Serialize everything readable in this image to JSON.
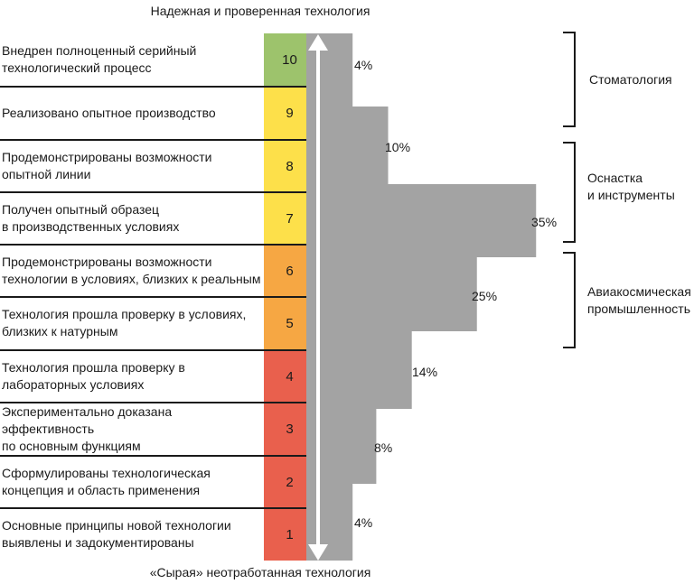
{
  "top_label": "Надежная и проверенная технология",
  "bottom_label": "«Сырая» неотработанная технология",
  "levels": [
    {
      "num": "10",
      "text": "Внедрен полноценный серийный\nтехнологический процесс",
      "color": "#9dc36c"
    },
    {
      "num": "9",
      "text": "Реализовано опытное производство",
      "color": "#fde04a"
    },
    {
      "num": "8",
      "text": "Продемонстрированы возможности\nопытной линии",
      "color": "#fde04a"
    },
    {
      "num": "7",
      "text": "Получен опытный образец\nв производственных условиях",
      "color": "#fde04a"
    },
    {
      "num": "6",
      "text": "Продемонстрированы возможности\nтехнологии в условиях, близких к реальным",
      "color": "#f6a743"
    },
    {
      "num": "5",
      "text": "Технология прошла проверку в условиях,\nблизких к натурным",
      "color": "#f6a743"
    },
    {
      "num": "4",
      "text": "Технология прошла проверку в\n лабораторных условиях",
      "color": "#e9604d"
    },
    {
      "num": "3",
      "text": "Экспериментально доказана эффективность\nпо основным функциям",
      "color": "#e9604d"
    },
    {
      "num": "2",
      "text": "Сформулированы технологическая\nконцепция и область применения",
      "color": "#e9604d"
    },
    {
      "num": "1",
      "text": "Основные принципы новой технологии\nвыявлены и задокументированы",
      "color": "#e9604d"
    }
  ],
  "distribution": [
    {
      "levels": "10",
      "value": 4,
      "label": "4%"
    },
    {
      "levels": "8-9",
      "value": 10,
      "label": "10%"
    },
    {
      "levels": "7",
      "value": 35,
      "label": "35%"
    },
    {
      "levels": "5-6",
      "value": 25,
      "label": "25%"
    },
    {
      "levels": "4",
      "value": 14,
      "label": "14%"
    },
    {
      "levels": "2-3",
      "value": 8,
      "label": "8%"
    },
    {
      "levels": "1",
      "value": 4,
      "label": "4%"
    }
  ],
  "industries": [
    {
      "text": "Стоматология",
      "span": "9-10"
    },
    {
      "text": "Оснастка\nи инструменты",
      "span": "7-8"
    },
    {
      "text": "Авиакосмическая\nпромышленность",
      "span": "5-6"
    }
  ],
  "colors": {
    "bar": "#a3a3a3",
    "arrow": "#ffffff",
    "line": "#1a1a1a"
  }
}
